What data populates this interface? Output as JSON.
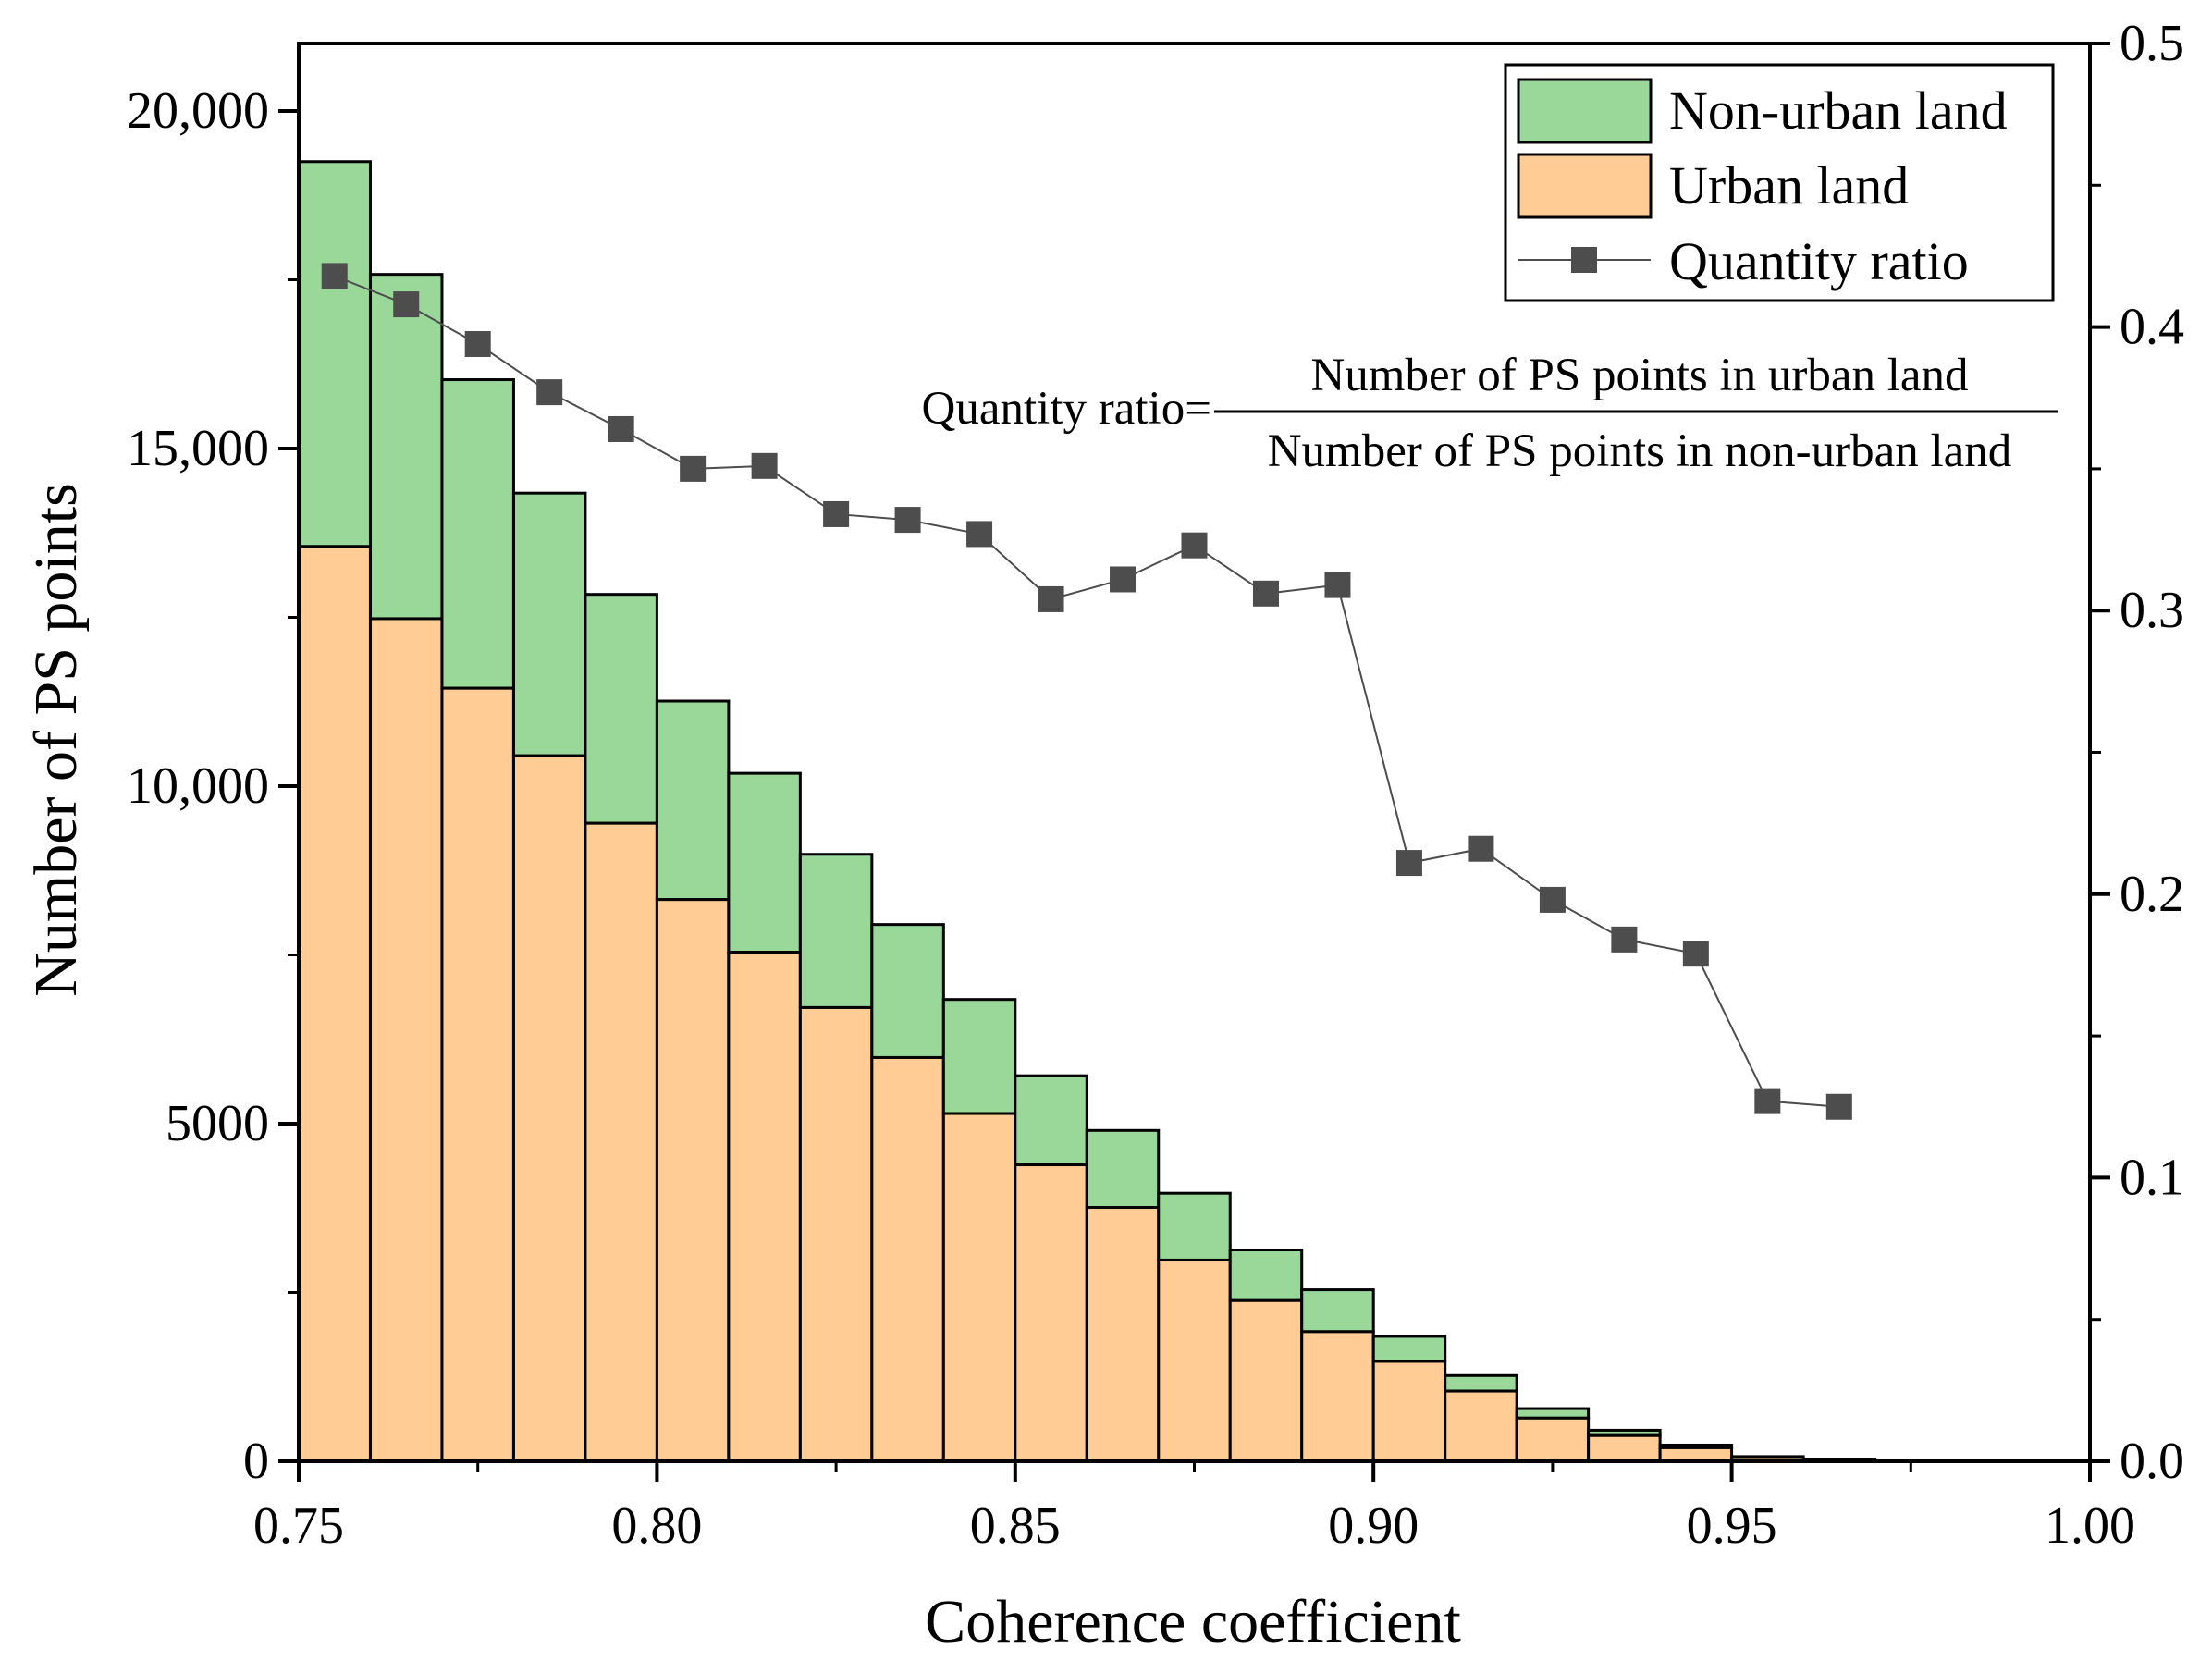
{
  "chart_data": {
    "type": "bar",
    "stacked": true,
    "bin_edges": [
      0.75,
      0.76,
      0.77,
      0.78,
      0.79,
      0.8,
      0.81,
      0.82,
      0.83,
      0.84,
      0.85,
      0.86,
      0.87,
      0.88,
      0.89,
      0.9,
      0.91,
      0.92,
      0.93,
      0.94,
      0.95,
      0.96,
      0.97
    ],
    "series": [
      {
        "name": "Urban land",
        "color": "#FECC94",
        "values": [
          13550,
          12480,
          11450,
          10450,
          9450,
          8320,
          7540,
          6720,
          5980,
          5150,
          4390,
          3760,
          2980,
          2380,
          1920,
          1480,
          1040,
          640,
          380,
          200,
          55,
          20
        ]
      },
      {
        "name": "Non-urban land",
        "color": "#9AD89A",
        "stacked_total": [
          19250,
          17580,
          16020,
          14340,
          12840,
          11260,
          10190,
          8990,
          7950,
          6840,
          5710,
          4900,
          3970,
          3130,
          2540,
          1850,
          1270,
          780,
          460,
          240,
          70,
          25
        ],
        "values": [
          5700,
          5100,
          4570,
          3890,
          3390,
          2940,
          2650,
          2270,
          1970,
          1690,
          1320,
          1140,
          990,
          750,
          620,
          370,
          230,
          140,
          80,
          40,
          15,
          5
        ]
      },
      {
        "name": "Quantity ratio",
        "type": "line",
        "axis": "y2",
        "color": "#4D4D4D",
        "x": [
          0.755,
          0.765,
          0.775,
          0.785,
          0.795,
          0.805,
          0.815,
          0.825,
          0.835,
          0.845,
          0.855,
          0.865,
          0.875,
          0.885,
          0.895,
          0.905,
          0.915,
          0.925,
          0.935,
          0.945,
          0.955,
          0.965
        ],
        "values": [
          0.418,
          0.408,
          0.394,
          0.377,
          0.364,
          0.35,
          0.351,
          0.334,
          0.332,
          0.327,
          0.304,
          0.311,
          0.323,
          0.306,
          0.309,
          0.211,
          0.216,
          0.198,
          0.184,
          0.179,
          0.127,
          0.125
        ]
      }
    ],
    "xlabel": "Coherence coefficient",
    "ylabel": "Number of PS points",
    "xlim": [
      0.75,
      1.0
    ],
    "ylim": [
      0,
      21000
    ],
    "y2lim": [
      0,
      0.5
    ],
    "xticks": [
      0.75,
      0.8,
      0.85,
      0.9,
      0.95,
      1.0
    ],
    "xtick_labels": [
      "0.75",
      "0.80",
      "0.85",
      "0.90",
      "0.95",
      "1.00"
    ],
    "yticks": [
      0,
      5000,
      10000,
      15000,
      20000
    ],
    "ytick_labels": [
      "0",
      "5000",
      "10,000",
      "15,000",
      "20,000"
    ],
    "y2ticks": [
      0.0,
      0.1,
      0.2,
      0.3,
      0.4,
      0.5
    ],
    "y2tick_labels": [
      "0.0",
      "0.1",
      "0.2",
      "0.3",
      "0.4",
      "0.5"
    ],
    "legend": {
      "position": "top-right",
      "entries": [
        "Non-urban land",
        "Urban land",
        "Quantity ratio"
      ]
    },
    "annotation": {
      "prefix": "Quantity ratio=",
      "numerator": "Number of PS points in urban land",
      "denominator": "Number of PS points in non-urban land"
    },
    "grid": false
  }
}
